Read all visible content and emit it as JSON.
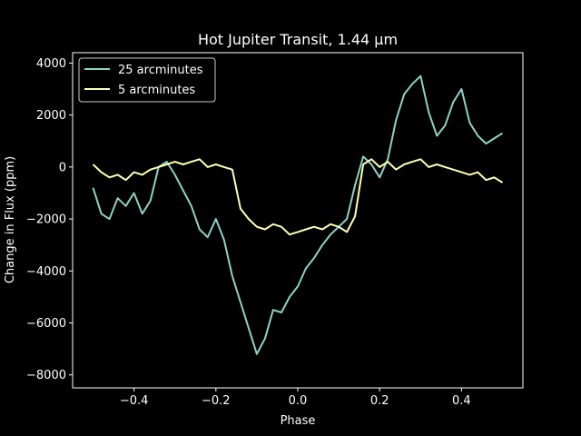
{
  "chart_data": {
    "type": "line",
    "title": "Hot Jupiter Transit, 1.44 µm",
    "xlabel": "Phase",
    "ylabel": "Change in Flux (ppm)",
    "xlim": [
      -0.55,
      0.55
    ],
    "ylim": [
      -8500,
      4400
    ],
    "xticks": [
      -0.4,
      -0.2,
      0.0,
      0.2,
      0.4
    ],
    "xtick_labels": [
      "−0.4",
      "−0.2",
      "0.0",
      "0.2",
      "0.4"
    ],
    "yticks": [
      -8000,
      -6000,
      -4000,
      -2000,
      0,
      2000,
      4000
    ],
    "ytick_labels": [
      "−8000",
      "−6000",
      "−4000",
      "−2000",
      "0",
      "2000",
      "4000"
    ],
    "grid": false,
    "legend_position": "top-left",
    "background": "#000000",
    "foreground": "#ffffff",
    "series": [
      {
        "name": "25 arcminutes",
        "color": "#8dd3c7",
        "x": [
          -0.5,
          -0.48,
          -0.46,
          -0.44,
          -0.42,
          -0.4,
          -0.38,
          -0.36,
          -0.34,
          -0.32,
          -0.3,
          -0.28,
          -0.26,
          -0.24,
          -0.22,
          -0.2,
          -0.18,
          -0.16,
          -0.14,
          -0.12,
          -0.1,
          -0.08,
          -0.06,
          -0.04,
          -0.02,
          0.0,
          0.02,
          0.04,
          0.06,
          0.08,
          0.1,
          0.12,
          0.14,
          0.16,
          0.18,
          0.2,
          0.22,
          0.24,
          0.26,
          0.28,
          0.3,
          0.32,
          0.34,
          0.36,
          0.38,
          0.4,
          0.42,
          0.44,
          0.46,
          0.48,
          0.5
        ],
        "y": [
          -800,
          -1800,
          -2000,
          -1200,
          -1500,
          -1000,
          -1800,
          -1300,
          0,
          200,
          -300,
          -900,
          -1500,
          -2400,
          -2700,
          -2000,
          -2800,
          -4200,
          -5200,
          -6200,
          -7200,
          -6600,
          -5500,
          -5600,
          -5000,
          -4600,
          -3900,
          -3500,
          -3000,
          -2600,
          -2300,
          -2000,
          -700,
          400,
          100,
          -400,
          300,
          1800,
          2800,
          3200,
          3500,
          2100,
          1200,
          1600,
          2500,
          3000,
          1700,
          1200,
          900,
          1100,
          1300
        ]
      },
      {
        "name": "5 arcminutes",
        "color": "#ffffb3",
        "x": [
          -0.5,
          -0.48,
          -0.46,
          -0.44,
          -0.42,
          -0.4,
          -0.38,
          -0.36,
          -0.34,
          -0.32,
          -0.3,
          -0.28,
          -0.26,
          -0.24,
          -0.22,
          -0.2,
          -0.18,
          -0.16,
          -0.14,
          -0.12,
          -0.1,
          -0.08,
          -0.06,
          -0.04,
          -0.02,
          0.0,
          0.02,
          0.04,
          0.06,
          0.08,
          0.1,
          0.12,
          0.14,
          0.16,
          0.18,
          0.2,
          0.22,
          0.24,
          0.26,
          0.28,
          0.3,
          0.32,
          0.34,
          0.36,
          0.38,
          0.4,
          0.42,
          0.44,
          0.46,
          0.48,
          0.5
        ],
        "y": [
          100,
          -200,
          -400,
          -300,
          -500,
          -200,
          -300,
          -100,
          0,
          100,
          200,
          100,
          200,
          300,
          0,
          100,
          0,
          -100,
          -1600,
          -2000,
          -2300,
          -2400,
          -2200,
          -2300,
          -2600,
          -2500,
          -2400,
          -2300,
          -2400,
          -2200,
          -2300,
          -2500,
          -1900,
          100,
          300,
          0,
          200,
          -100,
          100,
          200,
          300,
          0,
          100,
          0,
          -100,
          -200,
          -300,
          -200,
          -500,
          -400,
          -600
        ]
      }
    ]
  }
}
